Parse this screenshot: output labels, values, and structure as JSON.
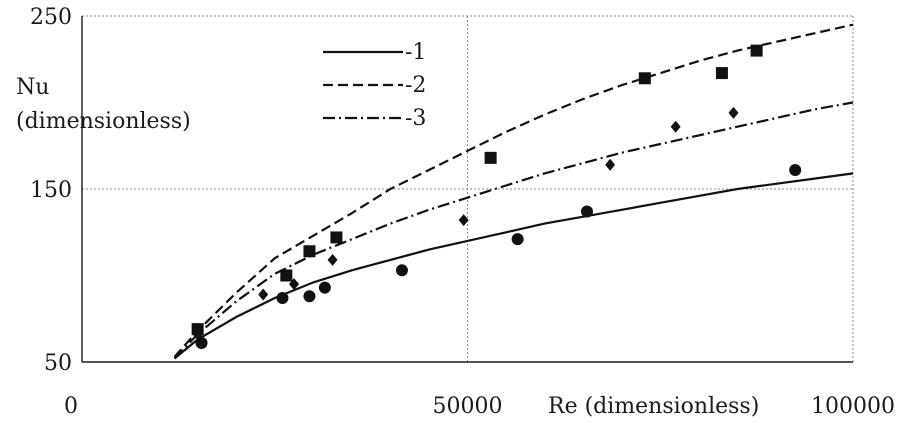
{
  "chart_data": {
    "type": "scatter",
    "title": "",
    "xlabel": "Re (dimensionless)",
    "ylabel_line1": "Nu",
    "ylabel_line2": "(dimensionless)",
    "xlim": [
      0,
      100000
    ],
    "ylim": [
      50,
      250
    ],
    "x_ticks": [
      0,
      50000,
      100000
    ],
    "y_ticks": [
      50,
      150,
      250
    ],
    "grid": true,
    "legend_position": "top-left",
    "lines": [
      {
        "name": "-1",
        "style": "solid",
        "x": [
          12000,
          15000,
          20000,
          25000,
          30000,
          35000,
          40000,
          45000,
          50000,
          55000,
          60000,
          65000,
          70000,
          75000,
          80000,
          85000,
          90000,
          95000,
          100000
        ],
        "y": [
          52,
          63,
          76,
          87,
          96,
          103,
          109,
          115,
          120,
          125,
          130,
          134,
          138,
          142,
          146,
          150,
          153,
          156,
          159
        ]
      },
      {
        "name": "-2",
        "style": "dashed",
        "x": [
          12000,
          15000,
          20000,
          25000,
          30000,
          35000,
          40000,
          45000,
          50000,
          55000,
          60000,
          65000,
          70000,
          75000,
          80000,
          85000,
          90000,
          95000,
          100000
        ],
        "y": [
          53,
          68,
          90,
          110,
          123,
          136,
          150,
          161,
          172,
          183,
          193,
          202,
          210,
          217,
          224,
          230,
          235,
          240,
          245
        ]
      },
      {
        "name": "-3",
        "style": "dash-dot",
        "x": [
          12000,
          15000,
          20000,
          25000,
          30000,
          35000,
          40000,
          45000,
          50000,
          55000,
          60000,
          65000,
          70000,
          75000,
          80000,
          85000,
          90000,
          95000,
          100000
        ],
        "y": [
          52,
          66,
          85,
          101,
          112,
          121,
          130,
          138,
          145,
          152,
          159,
          165,
          171,
          176,
          181,
          186,
          191,
          196,
          200
        ]
      }
    ],
    "markers": [
      {
        "shape": "circle",
        "x": [
          15500,
          26000,
          29500,
          31500,
          41500,
          56500,
          65500,
          92500
        ],
        "y": [
          61,
          87,
          88,
          93,
          103,
          121,
          137,
          161
        ]
      },
      {
        "shape": "square",
        "x": [
          15000,
          26500,
          29500,
          33000,
          53000,
          73000,
          83000,
          87500
        ],
        "y": [
          69,
          100,
          114,
          122,
          168,
          214,
          217,
          230
        ]
      },
      {
        "shape": "diamond",
        "x": [
          15000,
          23500,
          27500,
          32500,
          49500,
          68500,
          77000,
          84500
        ],
        "y": [
          66,
          89,
          95,
          109,
          132,
          164,
          186,
          194
        ]
      }
    ]
  }
}
